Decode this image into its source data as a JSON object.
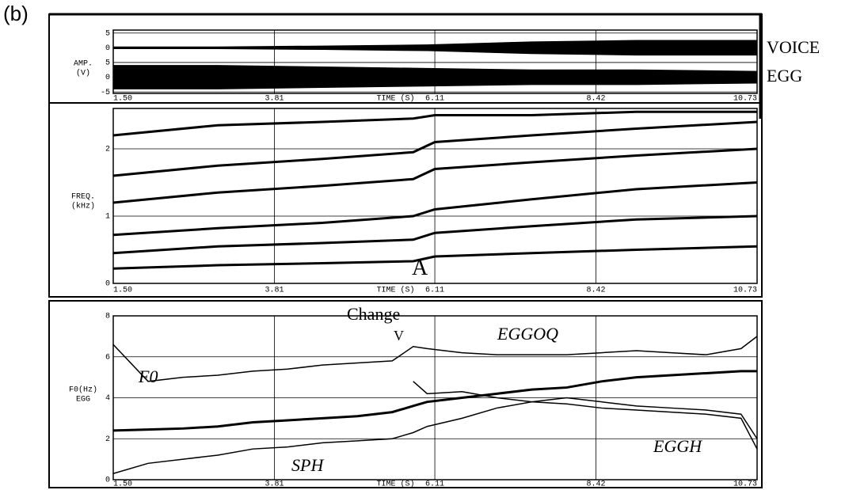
{
  "figure_label": "(b)",
  "chart_data": [
    {
      "type": "band",
      "ylabel": [
        "AMP.",
        "(V)"
      ],
      "xlabel": "TIME (S)",
      "x": [
        1.5,
        3,
        4.5,
        6,
        7.5,
        9,
        10.73
      ],
      "series": [
        {
          "name": "VOICE",
          "color": "#000000",
          "upper": [
            10.3,
            10.3,
            10.6,
            11,
            12,
            12.5,
            12.5
          ],
          "lower": [
            9.7,
            9.7,
            9.4,
            9,
            8,
            7.5,
            7.5
          ]
        },
        {
          "name": "EGG",
          "color": "#000000",
          "upper": [
            4,
            4,
            3.5,
            3,
            2.5,
            2.5,
            2
          ],
          "lower": [
            -4,
            -4,
            -3.5,
            -3,
            -2.5,
            -2.5,
            -2
          ]
        }
      ],
      "xlim": [
        1.5,
        10.73
      ],
      "xticks": [
        {
          "value": 1.5,
          "label": "1.50"
        },
        3.81,
        6.11,
        8.42,
        10.73
      ],
      "ylim": [
        -5.5,
        16
      ],
      "yticks": [
        {
          "value": 15,
          "label": "5"
        },
        {
          "value": 10,
          "label": "0"
        },
        {
          "value": 5,
          "label": "5"
        },
        {
          "value": 0,
          "label": "0"
        },
        -5
      ],
      "grid": true
    },
    {
      "type": "line",
      "ylabel": [
        "FREQ.",
        "(kHz)"
      ],
      "xlabel": "TIME (S)",
      "annotations": [
        "A"
      ],
      "x": [
        1.5,
        3,
        4.5,
        5.8,
        6.11,
        7.5,
        9,
        10.73
      ],
      "series": [
        {
          "color": "#000000",
          "values": [
            0.22,
            0.27,
            0.3,
            0.33,
            0.4,
            0.45,
            0.5,
            0.55
          ]
        },
        {
          "color": "#000000",
          "values": [
            0.45,
            0.55,
            0.6,
            0.65,
            0.75,
            0.85,
            0.95,
            1.0
          ]
        },
        {
          "color": "#000000",
          "values": [
            0.72,
            0.82,
            0.9,
            1.0,
            1.1,
            1.25,
            1.4,
            1.5
          ]
        },
        {
          "color": "#000000",
          "values": [
            1.2,
            1.35,
            1.45,
            1.55,
            1.7,
            1.8,
            1.9,
            2.0
          ]
        },
        {
          "color": "#000000",
          "values": [
            1.6,
            1.75,
            1.85,
            1.95,
            2.1,
            2.2,
            2.3,
            2.4
          ]
        },
        {
          "color": "#000000",
          "values": [
            2.2,
            2.35,
            2.4,
            2.45,
            2.5,
            2.5,
            2.55,
            2.55
          ]
        }
      ],
      "xlim": [
        1.5,
        10.73
      ],
      "xticks": [
        {
          "value": 1.5,
          "label": "1.50"
        },
        3.81,
        6.11,
        8.42,
        10.73
      ],
      "ylim": [
        0,
        2.6
      ],
      "yticks": [
        0,
        1,
        2
      ],
      "grid": true
    },
    {
      "type": "line",
      "ylabel": [
        "F0(Hz)",
        "EGG"
      ],
      "xlabel": "TIME (S)",
      "annotations": [
        "Change",
        "V"
      ],
      "x": [
        1.5,
        2,
        2.5,
        3,
        3.5,
        4,
        4.5,
        5,
        5.5,
        5.8,
        6,
        6.5,
        7,
        7.5,
        8,
        8.5,
        9,
        9.5,
        10,
        10.5,
        10.73
      ],
      "series": [
        {
          "name": "EGGOQ",
          "color": "#000000",
          "values": [
            6.6,
            4.8,
            5.0,
            5.1,
            5.3,
            5.4,
            5.6,
            5.7,
            5.8,
            6.5,
            6.4,
            6.2,
            6.1,
            6.1,
            6.1,
            6.2,
            6.3,
            6.2,
            6.1,
            6.4,
            7.0
          ]
        },
        {
          "name": "F0",
          "color": "#000000",
          "values": [
            2.4,
            2.45,
            2.5,
            2.6,
            2.8,
            2.9,
            3.0,
            3.1,
            3.3,
            3.6,
            3.8,
            4.0,
            4.2,
            4.4,
            4.5,
            4.8,
            5.0,
            5.1,
            5.2,
            5.3,
            5.3
          ]
        },
        {
          "name": "EGGH",
          "color": "#000000",
          "values": [
            null,
            null,
            null,
            null,
            null,
            null,
            null,
            null,
            null,
            4.8,
            4.2,
            4.3,
            4.0,
            3.8,
            3.7,
            3.5,
            3.4,
            3.3,
            3.2,
            3.0,
            1.5
          ]
        },
        {
          "name": "SPH",
          "color": "#000000",
          "values": [
            0.3,
            0.8,
            1.0,
            1.2,
            1.5,
            1.6,
            1.8,
            1.9,
            2.0,
            2.3,
            2.6,
            3.0,
            3.5,
            3.8,
            4.0,
            3.8,
            3.6,
            3.5,
            3.4,
            3.2,
            2.0
          ]
        }
      ],
      "xlim": [
        1.5,
        10.73
      ],
      "xticks": [
        {
          "value": 1.5,
          "label": "1.50"
        },
        3.81,
        6.11,
        8.42,
        10.73
      ],
      "ylim": [
        0,
        8
      ],
      "yticks": [
        0,
        2,
        4,
        6,
        8
      ],
      "grid": true
    }
  ]
}
